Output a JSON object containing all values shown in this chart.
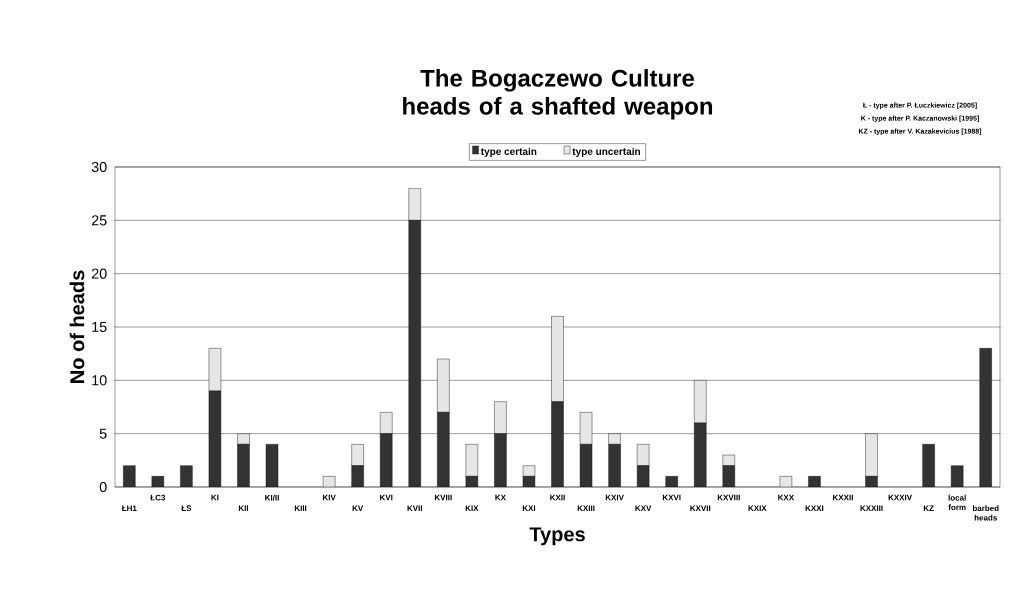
{
  "chart_data": {
    "type": "bar",
    "title": "The Bogaczewo Culture heads of a shafted weapon",
    "xlabel": "Types",
    "ylabel": "No of heads",
    "categories": [
      "ŁH1",
      "ŁC3",
      "ŁS",
      "KI",
      "KII",
      "KI/II",
      "KIII",
      "KIV",
      "KV",
      "KVI",
      "KVII",
      "KVIII",
      "KIX",
      "KX",
      "KXI",
      "KXII",
      "KXIII",
      "KXIV",
      "KXV",
      "KXVI",
      "KXVII",
      "KXVIII",
      "KXIX",
      "KXX",
      "KXXI",
      "KXXII",
      "KXXIII",
      "KXXIV",
      "KZ",
      "local form",
      "barbed heads"
    ],
    "stacked": true,
    "series": [
      {
        "name": "type certain",
        "color": "#333333",
        "values": [
          2,
          1,
          2,
          9,
          4,
          4,
          0,
          0,
          2,
          5,
          25,
          7,
          1,
          5,
          1,
          8,
          4,
          4,
          2,
          1,
          6,
          2,
          0,
          0,
          1,
          0,
          1,
          0,
          4,
          2,
          13
        ]
      },
      {
        "name": "type uncertain",
        "color": "#e6e6e6",
        "values": [
          0,
          0,
          0,
          4,
          1,
          0,
          0,
          1,
          2,
          2,
          3,
          5,
          3,
          3,
          1,
          8,
          3,
          1,
          2,
          0,
          4,
          1,
          0,
          1,
          0,
          0,
          4,
          0,
          0,
          0,
          0
        ]
      }
    ],
    "ylim": [
      0,
      30
    ],
    "yticks": [
      0,
      5,
      10,
      15,
      20,
      25,
      30
    ],
    "grid": "y",
    "legend": "top",
    "annotations": [
      "Ł - type after P. Łuczkiewicz [2005]",
      "K - type after P. Kaczanowski [1995]",
      "KZ - type after V. Kazakevicius [1988]"
    ]
  }
}
